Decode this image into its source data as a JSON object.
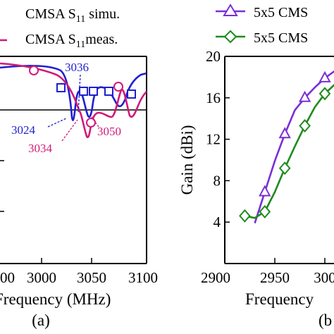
{
  "chart_data": [
    {
      "panel": "(a)",
      "type": "line",
      "xlabel": "Frequency (MHz)",
      "x_ticks": [
        "2900",
        "3000",
        "3050",
        "3100"
      ],
      "xlim": [
        2900,
        3100
      ],
      "legend": [
        {
          "label": "CMSA S11 simu.",
          "color": "#1f1fd0",
          "marker": "square"
        },
        {
          "label": "CMSA S11 meas.",
          "color": "#d01a78",
          "marker": "circle"
        }
      ],
      "annotations": [
        {
          "text": "3036",
          "color": "#1f1fd0"
        },
        {
          "text": "3024",
          "color": "#1f1fd0"
        },
        {
          "text": "3034",
          "color": "#d01a78"
        },
        {
          "text": "3050",
          "color": "#d01a78"
        }
      ],
      "series": [
        {
          "name": "CMSA S11 simu.",
          "color": "#1f1fd0",
          "x": [
            2900,
            2950,
            2990,
            3010,
            3018,
            3022,
            3024,
            3026,
            3030,
            3034,
            3036,
            3038,
            3042,
            3047,
            3055,
            3062,
            3068,
            3072,
            3076,
            3080,
            3090,
            3100
          ]
        },
        {
          "name": "CMSA S11 meas.",
          "color": "#d01a78",
          "x": [
            2900,
            2950,
            2980,
            3000,
            3015,
            3025,
            3030,
            3034,
            3036,
            3040,
            3044,
            3050,
            3055,
            3062,
            3068,
            3074,
            3080,
            3086,
            3092,
            3100
          ]
        }
      ]
    },
    {
      "panel": "(b)",
      "type": "line",
      "xlabel": "Frequency",
      "ylabel": "Gain (dBi)",
      "y_ticks": [
        "4",
        "8",
        "12",
        "16",
        "20"
      ],
      "x_ticks": [
        "2900",
        "2950",
        "300"
      ],
      "xlim": [
        2900,
        3000
      ],
      "ylim": [
        0,
        20
      ],
      "legend": [
        {
          "label": "5x5 CMS",
          "color": "#7a2fd6",
          "marker": "triangle"
        },
        {
          "label": "5x5 CMS",
          "color": "#1e8a1e",
          "marker": "diamond"
        }
      ],
      "series": [
        {
          "name": "5x5 CMS",
          "color": "#7a2fd6",
          "marker": "triangle",
          "x": [
            2930,
            2940,
            2950,
            2960,
            2970,
            2980,
            2990,
            3000,
            3010
          ],
          "y": [
            3.9,
            6.9,
            9.9,
            12.5,
            14.8,
            16.0,
            17.0,
            17.9,
            18.6
          ]
        },
        {
          "name": "5x5 CMS",
          "color": "#1e8a1e",
          "marker": "diamond",
          "x": [
            2920,
            2930,
            2940,
            2950,
            2960,
            2970,
            2980,
            2990,
            3000,
            3010
          ],
          "y": [
            4.6,
            4.4,
            5.0,
            6.9,
            9.2,
            11.3,
            13.3,
            15.1,
            16.4,
            17.3
          ]
        }
      ]
    }
  ],
  "panel_labels": {
    "a": "(a)",
    "b": "(b"
  }
}
